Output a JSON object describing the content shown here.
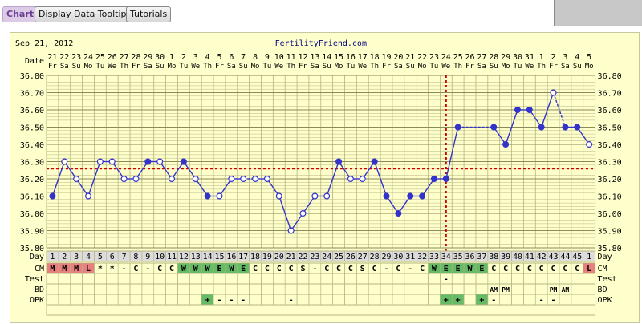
{
  "toolbar": {
    "chart_tab": "Chart",
    "tooltip_button": "Display Data Tooltip",
    "tutorials_button": "Tutorials"
  },
  "colors": {
    "panel_bg": "#ffffcc",
    "grid": "#b5b580",
    "line": "#3333cc",
    "coverline": "#cc0000",
    "cm_dry": "#e88080",
    "cm_egg": "#66bb66"
  },
  "chart_data": {
    "type": "line",
    "header_date": "Sep 21, 2012",
    "site": "FertilityFriend.com",
    "date_label": "Date",
    "day_label": "Day",
    "dates": [
      "21",
      "22",
      "23",
      "24",
      "25",
      "26",
      "27",
      "28",
      "29",
      "30",
      "1",
      "2",
      "3",
      "4",
      "5",
      "6",
      "7",
      "8",
      "9",
      "10",
      "11",
      "12",
      "13",
      "14",
      "15",
      "16",
      "17",
      "18",
      "19",
      "20",
      "21",
      "22",
      "23",
      "24",
      "25",
      "26",
      "27",
      "28",
      "29",
      "30",
      "31",
      "1",
      "2",
      "3",
      "4",
      "5"
    ],
    "weekdays": [
      "Fr",
      "Sa",
      "Su",
      "Mo",
      "Tu",
      "We",
      "Th",
      "Fr",
      "Sa",
      "Su",
      "Mo",
      "Tu",
      "We",
      "Th",
      "Fr",
      "Sa",
      "Su",
      "Mo",
      "Tu",
      "We",
      "Th",
      "Fr",
      "Sa",
      "Su",
      "Mo",
      "Tu",
      "We",
      "Th",
      "Fr",
      "Sa",
      "Su",
      "Mo",
      "Tu",
      "We",
      "Th",
      "Fr",
      "Sa",
      "Su",
      "Mo",
      "Tu",
      "We",
      "Th",
      "Fr",
      "Sa",
      "Su",
      "Mo"
    ],
    "days": [
      1,
      2,
      3,
      4,
      5,
      6,
      7,
      8,
      9,
      10,
      11,
      12,
      13,
      14,
      15,
      16,
      17,
      18,
      19,
      20,
      21,
      22,
      23,
      24,
      25,
      26,
      27,
      28,
      29,
      30,
      31,
      32,
      33,
      34,
      35,
      36,
      37,
      38,
      39,
      40,
      41,
      42,
      43,
      44,
      45,
      1
    ],
    "y_ticks": [
      "36.80",
      "36.70",
      "36.60",
      "36.50",
      "36.40",
      "36.30",
      "36.20",
      "36.10",
      "36.00",
      "35.90",
      "35.80"
    ],
    "ylim": [
      35.8,
      36.8
    ],
    "coverline": 36.26,
    "ovulation_index": 33,
    "temps": [
      36.1,
      36.3,
      36.2,
      36.1,
      36.3,
      36.3,
      36.2,
      36.2,
      36.3,
      36.3,
      36.2,
      36.3,
      36.2,
      36.1,
      36.1,
      36.2,
      36.2,
      36.2,
      36.2,
      36.1,
      35.9,
      36.0,
      36.1,
      36.1,
      36.3,
      36.2,
      36.2,
      36.3,
      36.1,
      36.0,
      36.1,
      36.1,
      36.2,
      36.2,
      36.5,
      null,
      null,
      36.5,
      36.4,
      36.6,
      36.6,
      36.5,
      36.7,
      36.5,
      36.5,
      36.4
    ],
    "filled": [
      true,
      false,
      false,
      false,
      false,
      false,
      false,
      false,
      true,
      false,
      false,
      true,
      false,
      true,
      false,
      false,
      false,
      false,
      false,
      false,
      false,
      false,
      false,
      false,
      true,
      false,
      false,
      true,
      true,
      true,
      true,
      true,
      true,
      true,
      true,
      false,
      false,
      true,
      true,
      true,
      true,
      true,
      false,
      true,
      true,
      false
    ],
    "dashed_segments": [
      [
        16,
        17
      ],
      [
        34,
        37
      ],
      [
        42,
        43
      ]
    ],
    "cm_label": "CM",
    "cm": [
      "M",
      "M",
      "M",
      "L",
      "*",
      "*",
      "-",
      "C",
      "-",
      "C",
      "C",
      "W",
      "W",
      "W",
      "E",
      "W",
      "E",
      "C",
      "C",
      "C",
      "C",
      "S",
      "-",
      "C",
      "C",
      "C",
      "S",
      "C",
      "-",
      "C",
      "-",
      "C",
      "W",
      "E",
      "E",
      "W",
      "E",
      "C",
      "C",
      "C",
      "C",
      "C",
      "C",
      "C",
      "C",
      "L"
    ],
    "test_label": "Test",
    "test": [
      "",
      "",
      "",
      "",
      "",
      "",
      "",
      "",
      "",
      "",
      "",
      "",
      "",
      "",
      "",
      "",
      "",
      "",
      "",
      "",
      "",
      "",
      "",
      "",
      "",
      "",
      "",
      "",
      "",
      "",
      "",
      "",
      "",
      "-",
      "",
      "",
      "",
      "",
      "",
      "",
      "",
      "",
      "",
      "",
      "",
      ""
    ],
    "bd_label": "BD",
    "bd": [
      "",
      "",
      "",
      "",
      "",
      "",
      "",
      "",
      "",
      "",
      "",
      "",
      "",
      "",
      "",
      "",
      "",
      "",
      "",
      "",
      "",
      "",
      "",
      "",
      "",
      "",
      "",
      "",
      "",
      "",
      "",
      "",
      "",
      "",
      "",
      "",
      "",
      "AM",
      "PM",
      "",
      "",
      "",
      "PM",
      "AM",
      "",
      ""
    ],
    "opk_label": "OPK",
    "opk": [
      "",
      "",
      "",
      "",
      "",
      "",
      "",
      "",
      "",
      "",
      "",
      "",
      "",
      "+",
      "-",
      "-",
      "-",
      "",
      "",
      "",
      "-",
      "",
      "",
      "",
      "",
      "",
      "",
      "",
      "",
      "",
      "",
      "",
      "",
      "+",
      "+",
      "",
      "+",
      "-",
      "",
      "",
      "",
      "-",
      "-",
      "",
      "",
      ""
    ]
  }
}
